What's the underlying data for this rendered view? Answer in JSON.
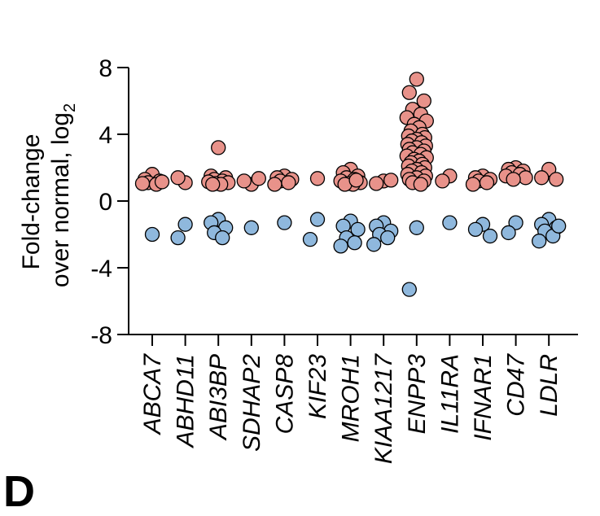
{
  "chart_data": {
    "type": "scatter",
    "title": "",
    "ylabel_line1": "Fold-change",
    "ylabel_line2": "over normal, log",
    "ylabel_sub": "2",
    "ylim": [
      -8,
      8
    ],
    "yticks": [
      8,
      4,
      0,
      -4,
      -8
    ],
    "ytick_labels": [
      "8",
      "4",
      "0",
      "-4",
      "-8"
    ],
    "grid": false,
    "categories": [
      "ABCA7",
      "ABHD11",
      "ABI3BP",
      "SDHAP2",
      "CASP8",
      "KIF23",
      "MROH1",
      "KIAA1217",
      "ENPP3",
      "IL11RA",
      "IFNAR1",
      "CD47",
      "LDLR"
    ],
    "colors": {
      "up": "#e8928a",
      "down": "#8fb8dd",
      "stroke": "#000000"
    },
    "series": [
      {
        "direction": "up",
        "points": [
          [
            0,
            1.6
          ],
          [
            0,
            1.3
          ],
          [
            0,
            1.2
          ],
          [
            0,
            1.1
          ],
          [
            0,
            1.0
          ],
          [
            0,
            1.05
          ],
          [
            0,
            1.15
          ],
          [
            1,
            1.1
          ],
          [
            1,
            1.4
          ],
          [
            2,
            3.2
          ],
          [
            2,
            1.5
          ],
          [
            2,
            1.4
          ],
          [
            2,
            1.3
          ],
          [
            2,
            1.2
          ],
          [
            2,
            1.15
          ],
          [
            2,
            1.1
          ],
          [
            2,
            1.05
          ],
          [
            2,
            1.0
          ],
          [
            2,
            1.0
          ],
          [
            3,
            1.0
          ],
          [
            3,
            1.2
          ],
          [
            3,
            1.35
          ],
          [
            4,
            1.5
          ],
          [
            4,
            1.4
          ],
          [
            4,
            1.3
          ],
          [
            4,
            1.2
          ],
          [
            4,
            1.1
          ],
          [
            4,
            1.0
          ],
          [
            5,
            1.35
          ],
          [
            6,
            1.9
          ],
          [
            6,
            1.7
          ],
          [
            6,
            1.5
          ],
          [
            6,
            1.4
          ],
          [
            6,
            1.3
          ],
          [
            6,
            1.2
          ],
          [
            6,
            1.1
          ],
          [
            6,
            1.05
          ],
          [
            6,
            1.0
          ],
          [
            6,
            1.0
          ],
          [
            6,
            1.25
          ],
          [
            7,
            1.2
          ],
          [
            7,
            1.05
          ],
          [
            7,
            1.25
          ],
          [
            8,
            7.3
          ],
          [
            8,
            6.5
          ],
          [
            8,
            6.0
          ],
          [
            8,
            5.5
          ],
          [
            8,
            5.2
          ],
          [
            8,
            5.0
          ],
          [
            8,
            4.8
          ],
          [
            8,
            4.6
          ],
          [
            8,
            4.4
          ],
          [
            8,
            4.2
          ],
          [
            8,
            4.0
          ],
          [
            8,
            3.9
          ],
          [
            8,
            3.8
          ],
          [
            8,
            3.7
          ],
          [
            8,
            3.6
          ],
          [
            8,
            3.5
          ],
          [
            8,
            3.4
          ],
          [
            8,
            3.3
          ],
          [
            8,
            3.2
          ],
          [
            8,
            3.1
          ],
          [
            8,
            3.0
          ],
          [
            8,
            2.9
          ],
          [
            8,
            2.8
          ],
          [
            8,
            2.7
          ],
          [
            8,
            2.6
          ],
          [
            8,
            2.5
          ],
          [
            8,
            2.4
          ],
          [
            8,
            2.3
          ],
          [
            8,
            2.2
          ],
          [
            8,
            2.1
          ],
          [
            8,
            2.0
          ],
          [
            8,
            1.9
          ],
          [
            8,
            1.8
          ],
          [
            8,
            1.7
          ],
          [
            8,
            1.6
          ],
          [
            8,
            1.5
          ],
          [
            8,
            1.4
          ],
          [
            8,
            1.3
          ],
          [
            8,
            1.2
          ],
          [
            8,
            1.1
          ],
          [
            8,
            1.0
          ],
          [
            9,
            1.5
          ],
          [
            9,
            1.2
          ],
          [
            10,
            1.5
          ],
          [
            10,
            1.4
          ],
          [
            10,
            1.3
          ],
          [
            10,
            1.2
          ],
          [
            10,
            1.1
          ],
          [
            10,
            1.0
          ],
          [
            11,
            2.0
          ],
          [
            11,
            1.9
          ],
          [
            11,
            1.8
          ],
          [
            11,
            1.7
          ],
          [
            11,
            1.6
          ],
          [
            11,
            1.5
          ],
          [
            11,
            1.4
          ],
          [
            11,
            1.3
          ],
          [
            12,
            1.9
          ],
          [
            12,
            1.4
          ],
          [
            12,
            1.3
          ]
        ]
      },
      {
        "direction": "down",
        "points": [
          [
            0,
            -2.0
          ],
          [
            1,
            -1.4
          ],
          [
            1,
            -2.2
          ],
          [
            2,
            -1.1
          ],
          [
            2,
            -1.3
          ],
          [
            2,
            -1.6
          ],
          [
            2,
            -1.9
          ],
          [
            2,
            -2.2
          ],
          [
            3,
            -1.6
          ],
          [
            4,
            -1.3
          ],
          [
            5,
            -1.1
          ],
          [
            5,
            -2.3
          ],
          [
            6,
            -1.2
          ],
          [
            6,
            -1.5
          ],
          [
            6,
            -1.7
          ],
          [
            6,
            -2.2
          ],
          [
            6,
            -2.5
          ],
          [
            6,
            -2.7
          ],
          [
            7,
            -1.3
          ],
          [
            7,
            -1.5
          ],
          [
            7,
            -1.8
          ],
          [
            7,
            -2.0
          ],
          [
            7,
            -2.2
          ],
          [
            7,
            -2.6
          ],
          [
            8,
            -1.6
          ],
          [
            8,
            -5.3
          ],
          [
            9,
            -1.3
          ],
          [
            10,
            -1.4
          ],
          [
            10,
            -1.7
          ],
          [
            10,
            -2.1
          ],
          [
            11,
            -1.3
          ],
          [
            11,
            -1.9
          ],
          [
            12,
            -1.1
          ],
          [
            12,
            -1.4
          ],
          [
            12,
            -1.6
          ],
          [
            12,
            -1.8
          ],
          [
            12,
            -2.1
          ],
          [
            12,
            -2.4
          ],
          [
            12,
            -1.5
          ]
        ]
      }
    ]
  },
  "panel_letter": "D"
}
